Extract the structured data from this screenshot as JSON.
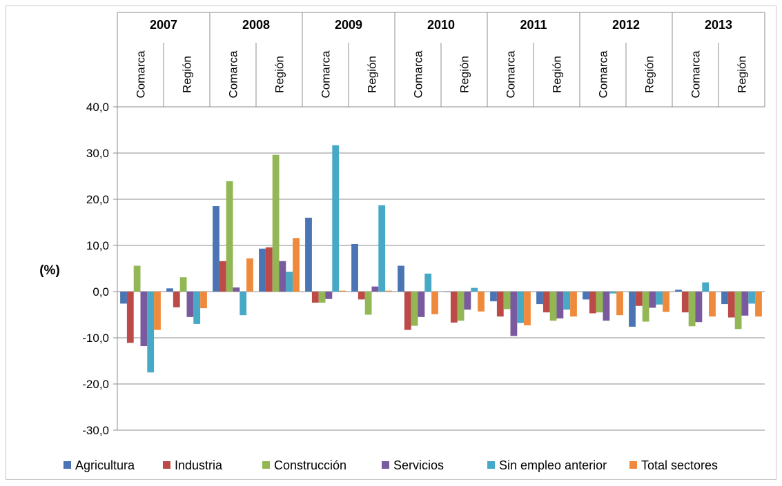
{
  "chart_data": {
    "type": "bar",
    "ylabel": "(%)",
    "ylim": [
      -30,
      40
    ],
    "y_ticks": [
      "40,0",
      "30,0",
      "20,0",
      "10,0",
      "0,0",
      "-10,0",
      "-20,0",
      "-30,0"
    ],
    "grid": true,
    "legend_position": "bottom",
    "years": [
      "2007",
      "2008",
      "2009",
      "2010",
      "2011",
      "2012",
      "2013"
    ],
    "subgroups": [
      "Comarca",
      "Región"
    ],
    "categories": [
      "2007 Comarca",
      "2007 Región",
      "2008 Comarca",
      "2008 Región",
      "2009 Comarca",
      "2009 Región",
      "2010 Comarca",
      "2010 Región",
      "2011 Comarca",
      "2011 Región",
      "2012 Comarca",
      "2012 Región",
      "2013 Comarca",
      "2013 Región"
    ],
    "series": [
      {
        "name": "Agricultura",
        "color": "#4a74b4",
        "values": [
          -2.6,
          0.7,
          18.5,
          9.3,
          16.0,
          10.3,
          5.6,
          -0.1,
          -2.1,
          -2.7,
          -1.7,
          -7.6,
          0.4,
          -2.7
        ]
      },
      {
        "name": "Industria",
        "color": "#bc4b47",
        "values": [
          -11.1,
          -3.4,
          6.6,
          9.6,
          -2.4,
          -1.7,
          -8.3,
          -6.7,
          -5.4,
          -4.5,
          -4.7,
          -3.1,
          -4.5,
          -5.6
        ]
      },
      {
        "name": "Construcción",
        "color": "#93b755",
        "values": [
          5.6,
          3.1,
          23.9,
          29.6,
          -2.4,
          -5.0,
          -7.4,
          -6.3,
          -3.8,
          -6.3,
          -4.5,
          -6.5,
          -7.5,
          -8.1
        ]
      },
      {
        "name": "Servicios",
        "color": "#7a5a9e",
        "values": [
          -11.8,
          -5.5,
          0.9,
          6.6,
          -1.6,
          1.1,
          -5.5,
          -3.9,
          -9.6,
          -5.8,
          -6.3,
          -3.5,
          -6.6,
          -5.2
        ]
      },
      {
        "name": "Sin empleo anterior",
        "color": "#47a9c6",
        "values": [
          -17.5,
          -7.0,
          -5.1,
          4.3,
          31.7,
          18.7,
          3.9,
          0.8,
          -6.8,
          -3.9,
          -0.4,
          -2.8,
          2.0,
          -2.6
        ]
      },
      {
        "name": "Total sectores",
        "color": "#ef8a3c",
        "values": [
          -8.3,
          -3.6,
          7.2,
          11.6,
          0.2,
          0.2,
          -4.9,
          -4.3,
          -7.3,
          -5.4,
          -5.1,
          -4.4,
          -5.4,
          -5.4
        ]
      }
    ]
  }
}
